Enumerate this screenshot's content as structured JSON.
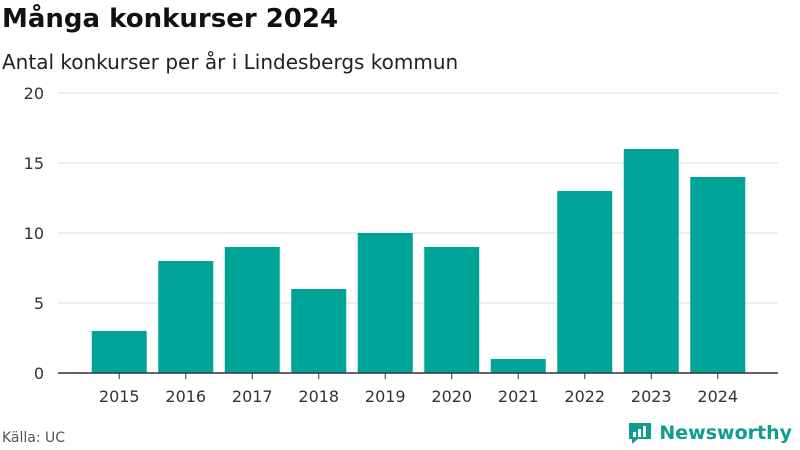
{
  "title": "Många konkurser 2024",
  "subtitle": "Antal konkurser per år i Lindesbergs kommun",
  "source": "Källa: UC",
  "brand": {
    "name": "Newsworthy",
    "icon": "newsworthy-logo-icon",
    "color": "#0f9d8e"
  },
  "colors": {
    "bar": "#00a398",
    "grid": "#dddddd",
    "axis": "#333333"
  },
  "chart_data": {
    "type": "bar",
    "categories": [
      "2015",
      "2016",
      "2017",
      "2018",
      "2019",
      "2020",
      "2021",
      "2022",
      "2023",
      "2024"
    ],
    "values": [
      3,
      8,
      9,
      6,
      10,
      9,
      1,
      13,
      16,
      14
    ],
    "ylim": [
      0,
      20
    ],
    "yticks": [
      0,
      5,
      10,
      15,
      20
    ],
    "grid": true,
    "legend": "none"
  }
}
